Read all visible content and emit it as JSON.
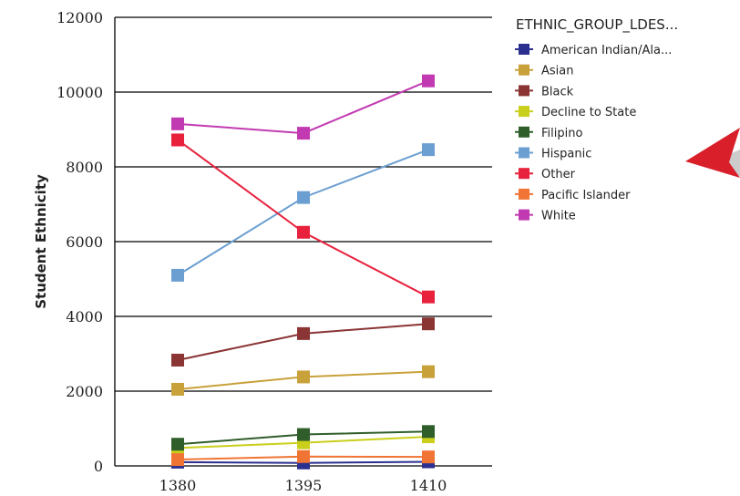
{
  "chart_data": {
    "type": "line",
    "x": [
      "1380",
      "1395",
      "1410"
    ],
    "ylabel": "Student Ethnicity",
    "ylim": [
      0,
      12000
    ],
    "yticks": [
      0,
      2000,
      4000,
      6000,
      8000,
      10000,
      12000
    ],
    "grid": "horizontal",
    "legend_title": "ETHNIC_GROUP_LDES...",
    "legend_placement": "right",
    "series": [
      {
        "name": "American Indian/Ala...",
        "color": "#2b2f8f",
        "values": [
          100,
          80,
          110
        ]
      },
      {
        "name": "Asian",
        "color": "#c9a13b",
        "values": [
          2050,
          2380,
          2520
        ]
      },
      {
        "name": "Black",
        "color": "#8b3434",
        "values": [
          2830,
          3540,
          3800
        ]
      },
      {
        "name": "Decline to State",
        "color": "#c9cf1a",
        "values": [
          480,
          620,
          780
        ]
      },
      {
        "name": "Filipino",
        "color": "#2f5e2a",
        "values": [
          580,
          840,
          920
        ]
      },
      {
        "name": "Hispanic",
        "color": "#6b9fd1",
        "values": [
          5100,
          7180,
          8460
        ]
      },
      {
        "name": "Other",
        "color": "#e8213d",
        "values": [
          8720,
          6250,
          4520
        ]
      },
      {
        "name": "Pacific Islander",
        "color": "#f07535",
        "values": [
          170,
          250,
          240
        ]
      },
      {
        "name": "White",
        "color": "#c23ab2",
        "values": [
          9150,
          8900,
          10300
        ]
      }
    ]
  }
}
